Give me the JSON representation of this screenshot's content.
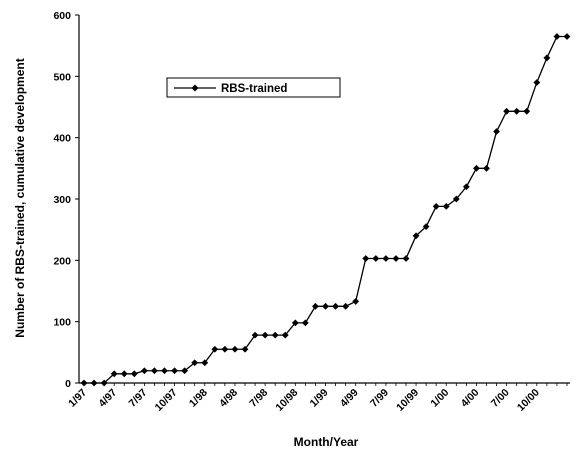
{
  "chart_data": {
    "type": "line",
    "title": "",
    "xlabel": "Month/Year",
    "ylabel": "Number of RBS-trained, cumulative development",
    "ylim": [
      0,
      600
    ],
    "yticks": [
      0,
      100,
      200,
      300,
      400,
      500,
      600
    ],
    "x_tick_labels": [
      "1/97",
      "4/97",
      "7/97",
      "10/97",
      "1/98",
      "4/98",
      "7/98",
      "10/98",
      "1/99",
      "4/99",
      "7/99",
      "10/99",
      "1/00",
      "4/00",
      "7/00",
      "10/00"
    ],
    "grid": false,
    "legend_position": "top-center",
    "series": [
      {
        "name": "RBS-trained",
        "color": "#000000",
        "marker": "diamond",
        "values": [
          0,
          0,
          0,
          15,
          15,
          15,
          20,
          20,
          20,
          20,
          20,
          33,
          33,
          55,
          55,
          55,
          55,
          78,
          78,
          78,
          78,
          98,
          98,
          125,
          125,
          125,
          125,
          133,
          203,
          203,
          203,
          203,
          203,
          240,
          255,
          288,
          288,
          300,
          320,
          350,
          350,
          410,
          443,
          443,
          443,
          490,
          530,
          565,
          565
        ]
      }
    ]
  }
}
